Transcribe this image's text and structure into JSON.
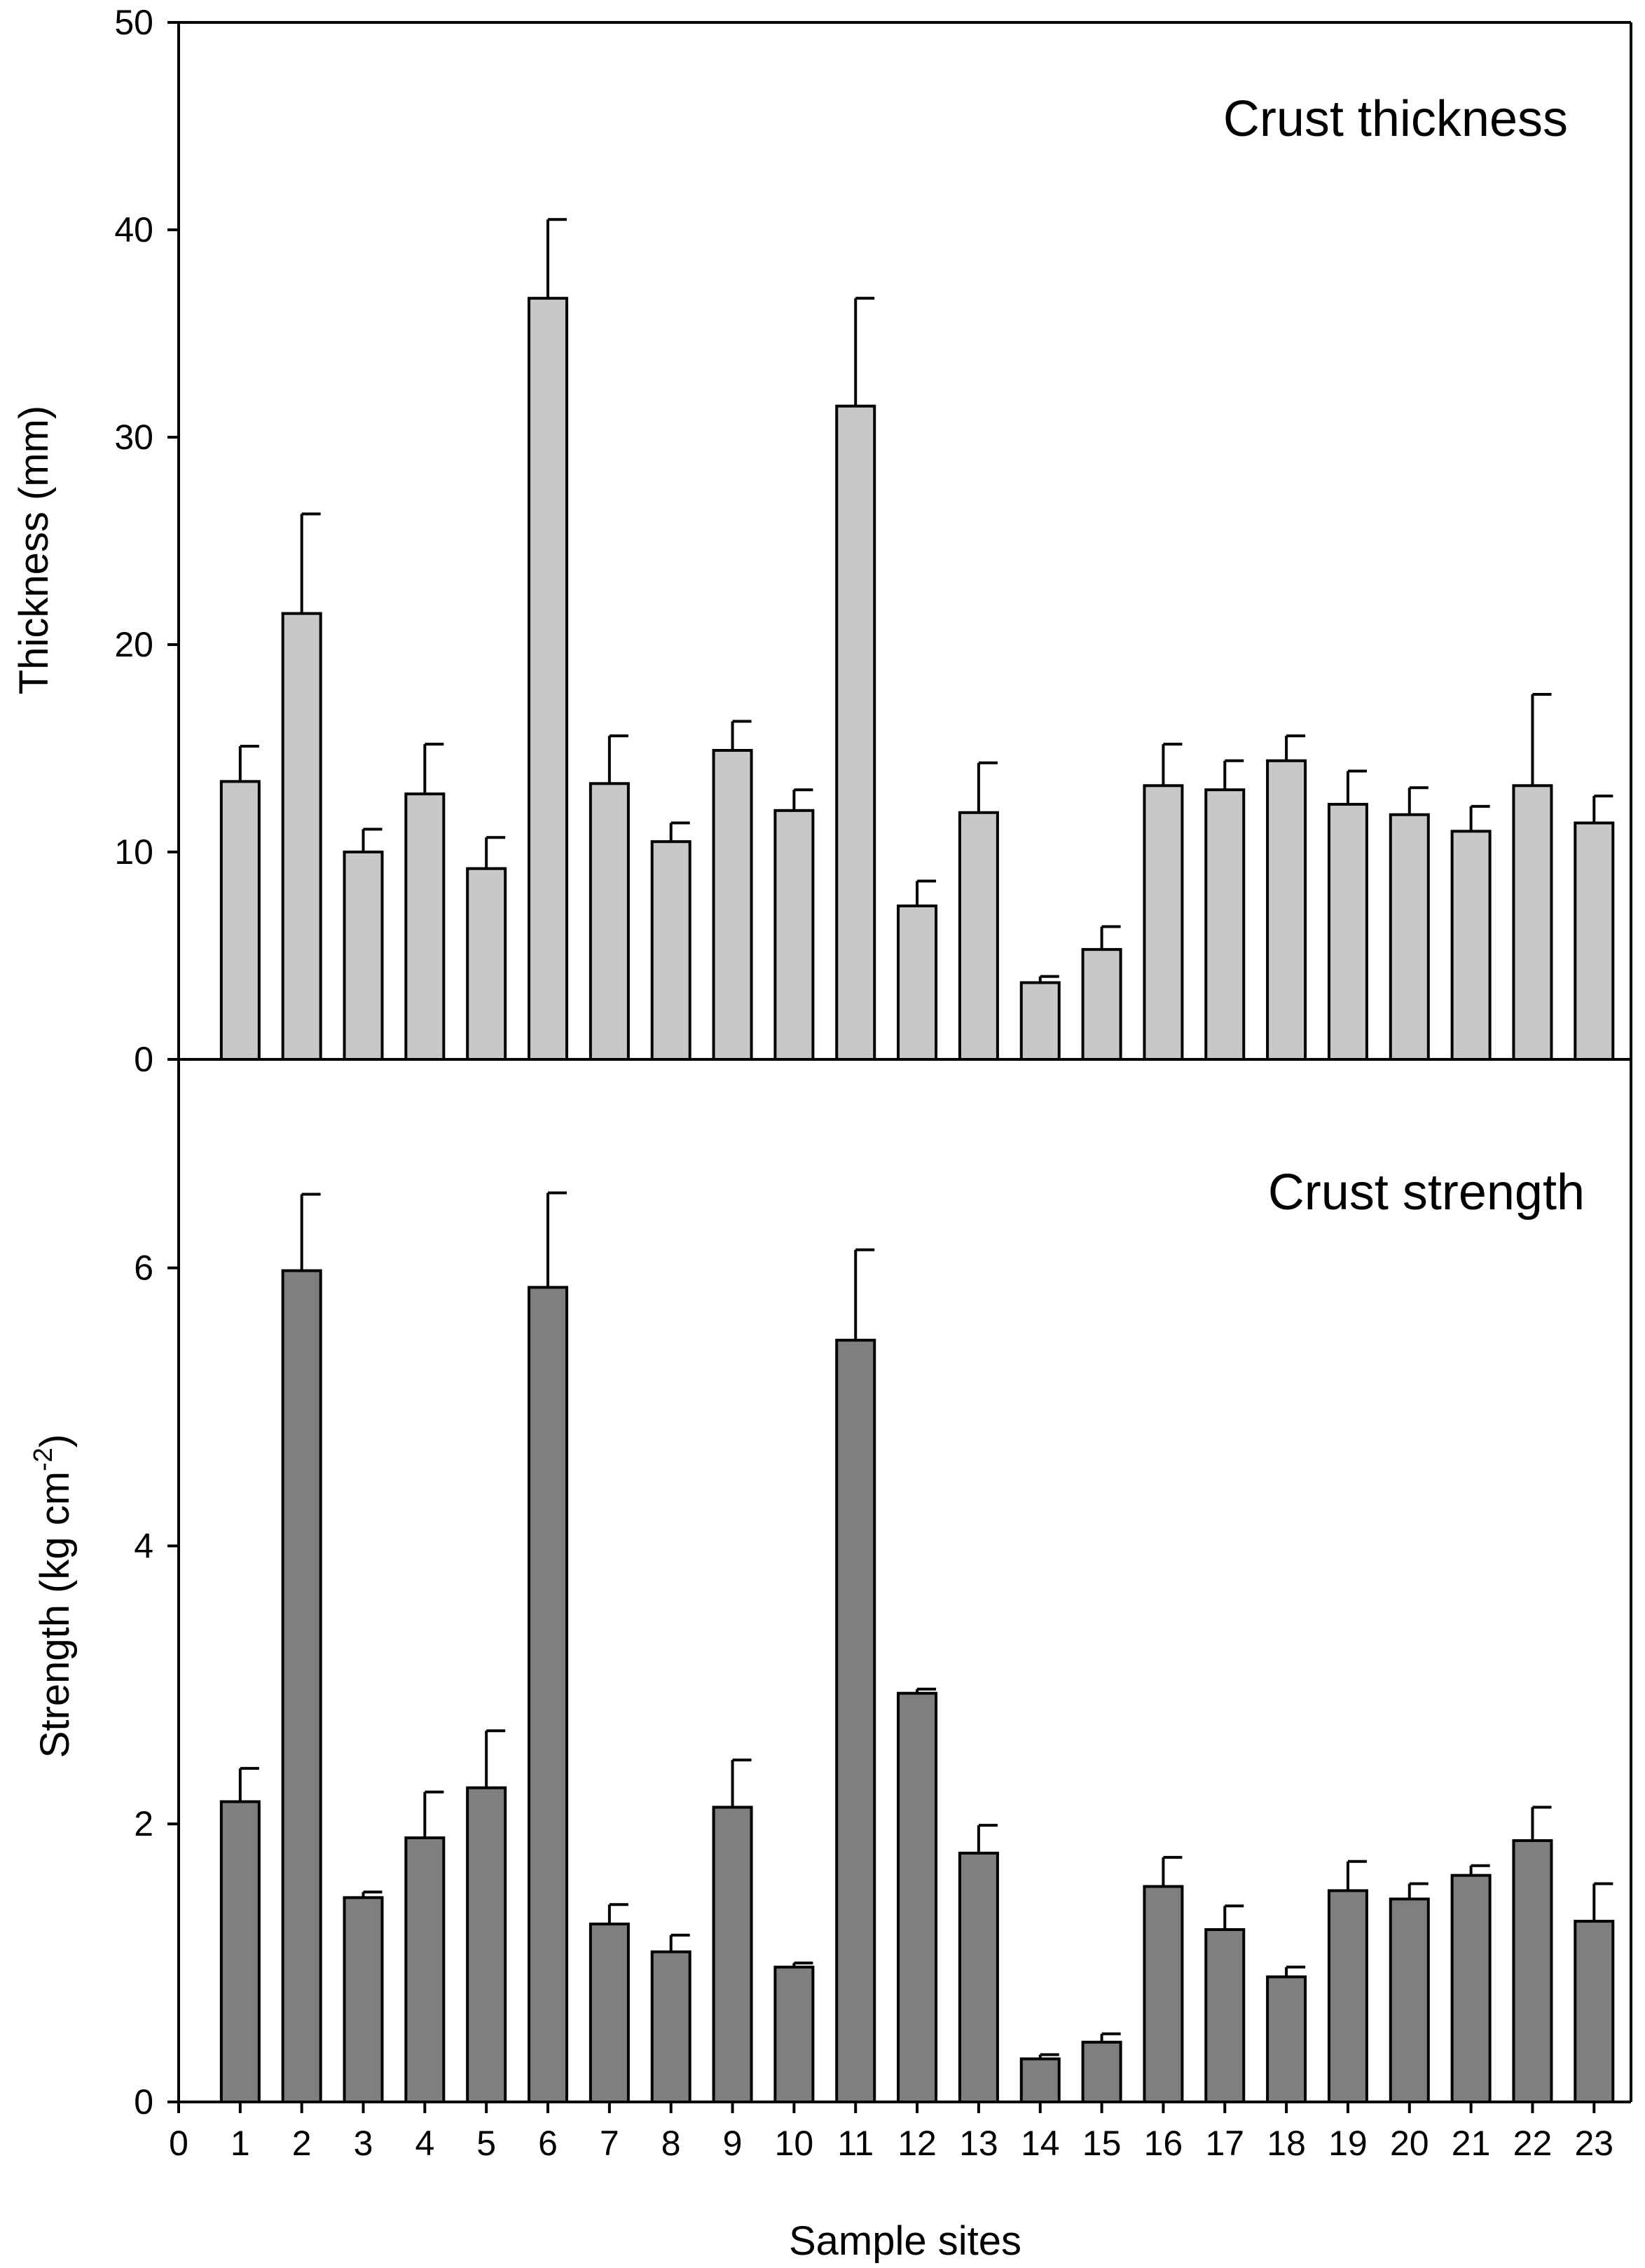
{
  "chart_data": [
    {
      "type": "bar",
      "title": "Crust thickness",
      "xlabel": "Sample sites",
      "ylabel": "Thickness (mm)",
      "categories": [
        "1",
        "2",
        "3",
        "4",
        "5",
        "6",
        "7",
        "8",
        "9",
        "10",
        "11",
        "12",
        "13",
        "14",
        "15",
        "16",
        "17",
        "18",
        "19",
        "20",
        "21",
        "22",
        "23"
      ],
      "values": [
        13.4,
        21.5,
        10.0,
        12.8,
        9.2,
        36.7,
        13.3,
        10.5,
        14.9,
        12.0,
        31.5,
        7.4,
        11.9,
        3.7,
        5.3,
        13.2,
        13.0,
        14.4,
        12.3,
        11.8,
        11.0,
        13.2,
        11.4
      ],
      "errors": [
        1.7,
        4.8,
        1.1,
        2.4,
        1.5,
        3.8,
        2.3,
        0.9,
        1.4,
        1.0,
        5.2,
        1.2,
        2.4,
        0.3,
        1.1,
        2.0,
        1.4,
        1.2,
        1.6,
        1.3,
        1.2,
        4.4,
        1.3
      ],
      "ylim": [
        0,
        50
      ],
      "yticks": [
        0,
        10,
        20,
        30,
        40,
        50
      ],
      "bar_color": "#c8c8c8"
    },
    {
      "type": "bar",
      "title": "Crust strength",
      "xlabel": "Sample sites",
      "ylabel": "Strength (kg cm",
      "ylabel_superscript": "-2",
      "ylabel_close": ")",
      "categories": [
        "1",
        "2",
        "3",
        "4",
        "5",
        "6",
        "7",
        "8",
        "9",
        "10",
        "11",
        "12",
        "13",
        "14",
        "15",
        "16",
        "17",
        "18",
        "19",
        "20",
        "21",
        "22",
        "23"
      ],
      "values": [
        2.16,
        5.98,
        1.47,
        1.9,
        2.26,
        5.86,
        1.28,
        1.08,
        2.12,
        0.97,
        5.48,
        2.94,
        1.79,
        0.31,
        0.43,
        1.55,
        1.24,
        0.9,
        1.52,
        1.46,
        1.63,
        1.88,
        1.3
      ],
      "errors": [
        0.24,
        0.55,
        0.04,
        0.33,
        0.41,
        0.68,
        0.14,
        0.12,
        0.34,
        0.03,
        0.65,
        0.03,
        0.2,
        0.03,
        0.06,
        0.21,
        0.17,
        0.07,
        0.21,
        0.11,
        0.07,
        0.24,
        0.27
      ],
      "ylim": [
        0,
        7.5
      ],
      "yticks": [
        0,
        2,
        4,
        6
      ],
      "bar_color": "#7f7f7f"
    }
  ],
  "x_axis": {
    "xlim": [
      0,
      23.6
    ],
    "ticks": [
      "0",
      "1",
      "2",
      "3",
      "4",
      "5",
      "6",
      "7",
      "8",
      "9",
      "10",
      "11",
      "12",
      "13",
      "14",
      "15",
      "16",
      "17",
      "18",
      "19",
      "20",
      "21",
      "22",
      "23"
    ]
  }
}
